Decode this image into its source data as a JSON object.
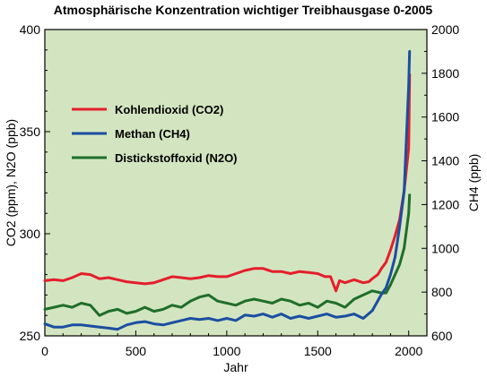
{
  "chart_data": {
    "type": "line",
    "title": "Atmosphärische Konzentration wichtiger Treibhausgase 0-2005",
    "xlabel": "Jahr",
    "ylabel_left": "CO2 (ppm), N2O (ppb)",
    "ylabel_right": "CH4 (ppb)",
    "xlim": [
      0,
      2100
    ],
    "ylim_left": [
      250,
      400
    ],
    "ylim_right": [
      600,
      2000
    ],
    "x_ticks": [
      "0",
      "500",
      "1000",
      "1500",
      "2000"
    ],
    "y_left_ticks": [
      "250",
      "300",
      "350",
      "400"
    ],
    "y_right_ticks": [
      "600",
      "800",
      "1000",
      "1200",
      "1400",
      "1600",
      "1800",
      "2000"
    ],
    "background": "#d3e5c0",
    "grid": false,
    "legend_position": "upper-left",
    "series": [
      {
        "name": "Kohlendioxid (CO2)",
        "axis": "left",
        "color": "#e41e2c",
        "x": [
          0,
          50,
          100,
          150,
          200,
          250,
          300,
          350,
          400,
          450,
          500,
          550,
          600,
          650,
          700,
          750,
          800,
          850,
          900,
          950,
          1000,
          1050,
          1100,
          1150,
          1200,
          1250,
          1300,
          1350,
          1400,
          1450,
          1500,
          1540,
          1570,
          1600,
          1620,
          1650,
          1700,
          1750,
          1780,
          1800,
          1830,
          1850,
          1875,
          1900,
          1925,
          1950,
          1975,
          2000,
          2005
        ],
        "values": [
          277,
          277.5,
          277,
          278.5,
          280.5,
          280,
          278,
          278.5,
          277.5,
          276.5,
          276,
          275.5,
          276,
          277.5,
          279,
          278.5,
          278,
          278.5,
          279.5,
          279,
          279,
          280.5,
          282,
          283,
          283,
          281.5,
          281.5,
          280.5,
          281.5,
          281,
          280.5,
          279,
          279,
          272,
          277,
          276,
          277.5,
          276,
          276.5,
          278,
          280,
          283,
          286,
          292,
          299,
          307,
          321,
          342,
          378
        ]
      },
      {
        "name": "Methan (CH4)",
        "axis": "right",
        "color": "#1b4ea1",
        "x": [
          0,
          50,
          100,
          150,
          200,
          250,
          300,
          350,
          400,
          450,
          500,
          550,
          600,
          650,
          700,
          750,
          800,
          850,
          900,
          950,
          1000,
          1050,
          1100,
          1150,
          1200,
          1250,
          1300,
          1350,
          1400,
          1450,
          1500,
          1550,
          1600,
          1650,
          1700,
          1750,
          1800,
          1850,
          1875,
          1900,
          1925,
          1950,
          1975,
          2000,
          2005
        ],
        "values": [
          655,
          640,
          640,
          650,
          650,
          645,
          640,
          635,
          630,
          650,
          660,
          665,
          655,
          650,
          660,
          670,
          680,
          675,
          680,
          670,
          680,
          670,
          695,
          690,
          700,
          685,
          700,
          680,
          690,
          680,
          690,
          700,
          685,
          690,
          700,
          680,
          715,
          790,
          820,
          880,
          960,
          1100,
          1260,
          1750,
          1900
        ]
      },
      {
        "name": "Distickstoffoxid (N2O)",
        "axis": "left",
        "color": "#1f6e2b",
        "x": [
          0,
          50,
          100,
          150,
          200,
          250,
          300,
          350,
          400,
          450,
          500,
          550,
          600,
          650,
          700,
          750,
          800,
          850,
          900,
          950,
          1000,
          1050,
          1100,
          1150,
          1200,
          1250,
          1300,
          1350,
          1400,
          1450,
          1500,
          1550,
          1600,
          1650,
          1700,
          1750,
          1800,
          1850,
          1875,
          1900,
          1925,
          1950,
          1975,
          2000,
          2005
        ],
        "values": [
          263,
          264,
          265,
          264,
          266,
          265,
          260,
          262,
          263,
          261,
          262,
          264,
          262,
          263,
          265,
          264,
          267,
          269,
          270,
          267,
          266,
          265,
          267,
          268,
          267,
          266,
          268,
          267,
          265,
          266,
          264,
          267,
          266,
          264,
          268,
          270,
          272,
          271,
          271,
          275,
          280,
          285,
          293,
          310,
          319
        ]
      }
    ]
  }
}
